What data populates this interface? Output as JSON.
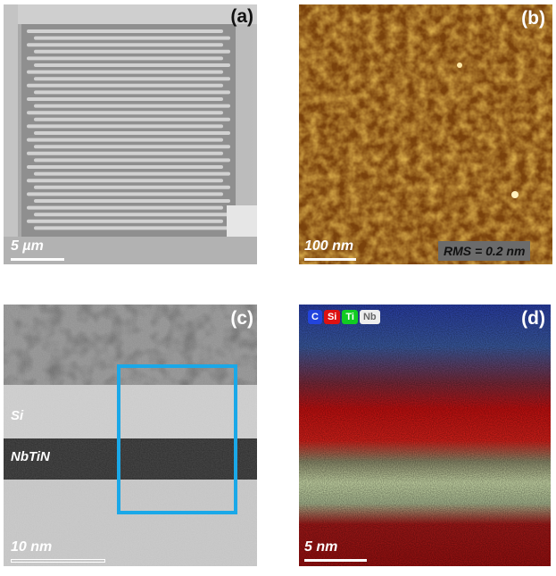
{
  "panels": {
    "a": {
      "label": "(a)",
      "scale": "5 µm"
    },
    "b": {
      "label": "(b)",
      "scale": "100 nm",
      "rms": "RMS = 0.2 nm"
    },
    "c": {
      "label": "(c)",
      "scale": "10 nm",
      "layers": {
        "si": "Si",
        "nbtin": "NbTiN"
      }
    },
    "d": {
      "label": "(d)",
      "scale": "5 nm",
      "legend": [
        {
          "text": "C",
          "color": "#2244dd"
        },
        {
          "text": "Si",
          "color": "#dd1111"
        },
        {
          "text": "Ti",
          "color": "#11cc22"
        },
        {
          "text": "Nb",
          "color": "#eeeeee"
        }
      ]
    }
  }
}
